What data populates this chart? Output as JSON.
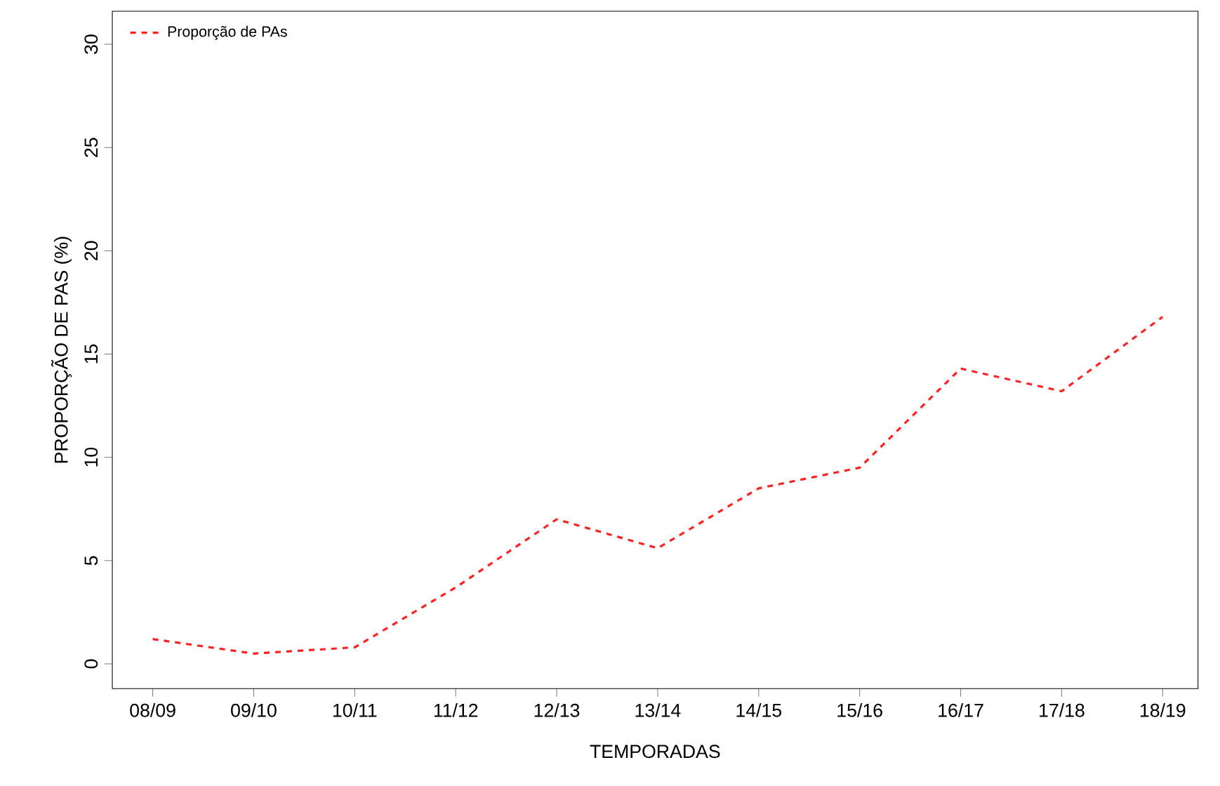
{
  "chart_data": {
    "type": "line",
    "xlabel": "TEMPORADAS",
    "ylabel": "PROPORÇÃO DE PAS (%)",
    "categories": [
      "08/09",
      "09/10",
      "10/11",
      "11/12",
      "12/13",
      "13/14",
      "14/15",
      "15/16",
      "16/17",
      "17/18",
      "18/19"
    ],
    "series": [
      {
        "name": "Proporção de PAs",
        "color": "#ff2020",
        "values": [
          1.2,
          0.5,
          0.8,
          3.7,
          7.0,
          5.6,
          8.5,
          9.5,
          14.3,
          13.2,
          16.8
        ]
      }
    ],
    "ylim": [
      -1.2,
      31.6
    ],
    "yticks": [
      0,
      5,
      10,
      15,
      20,
      25,
      30
    ],
    "line_style": "dashed",
    "marker": "none",
    "legend": "top left",
    "grid": false
  }
}
